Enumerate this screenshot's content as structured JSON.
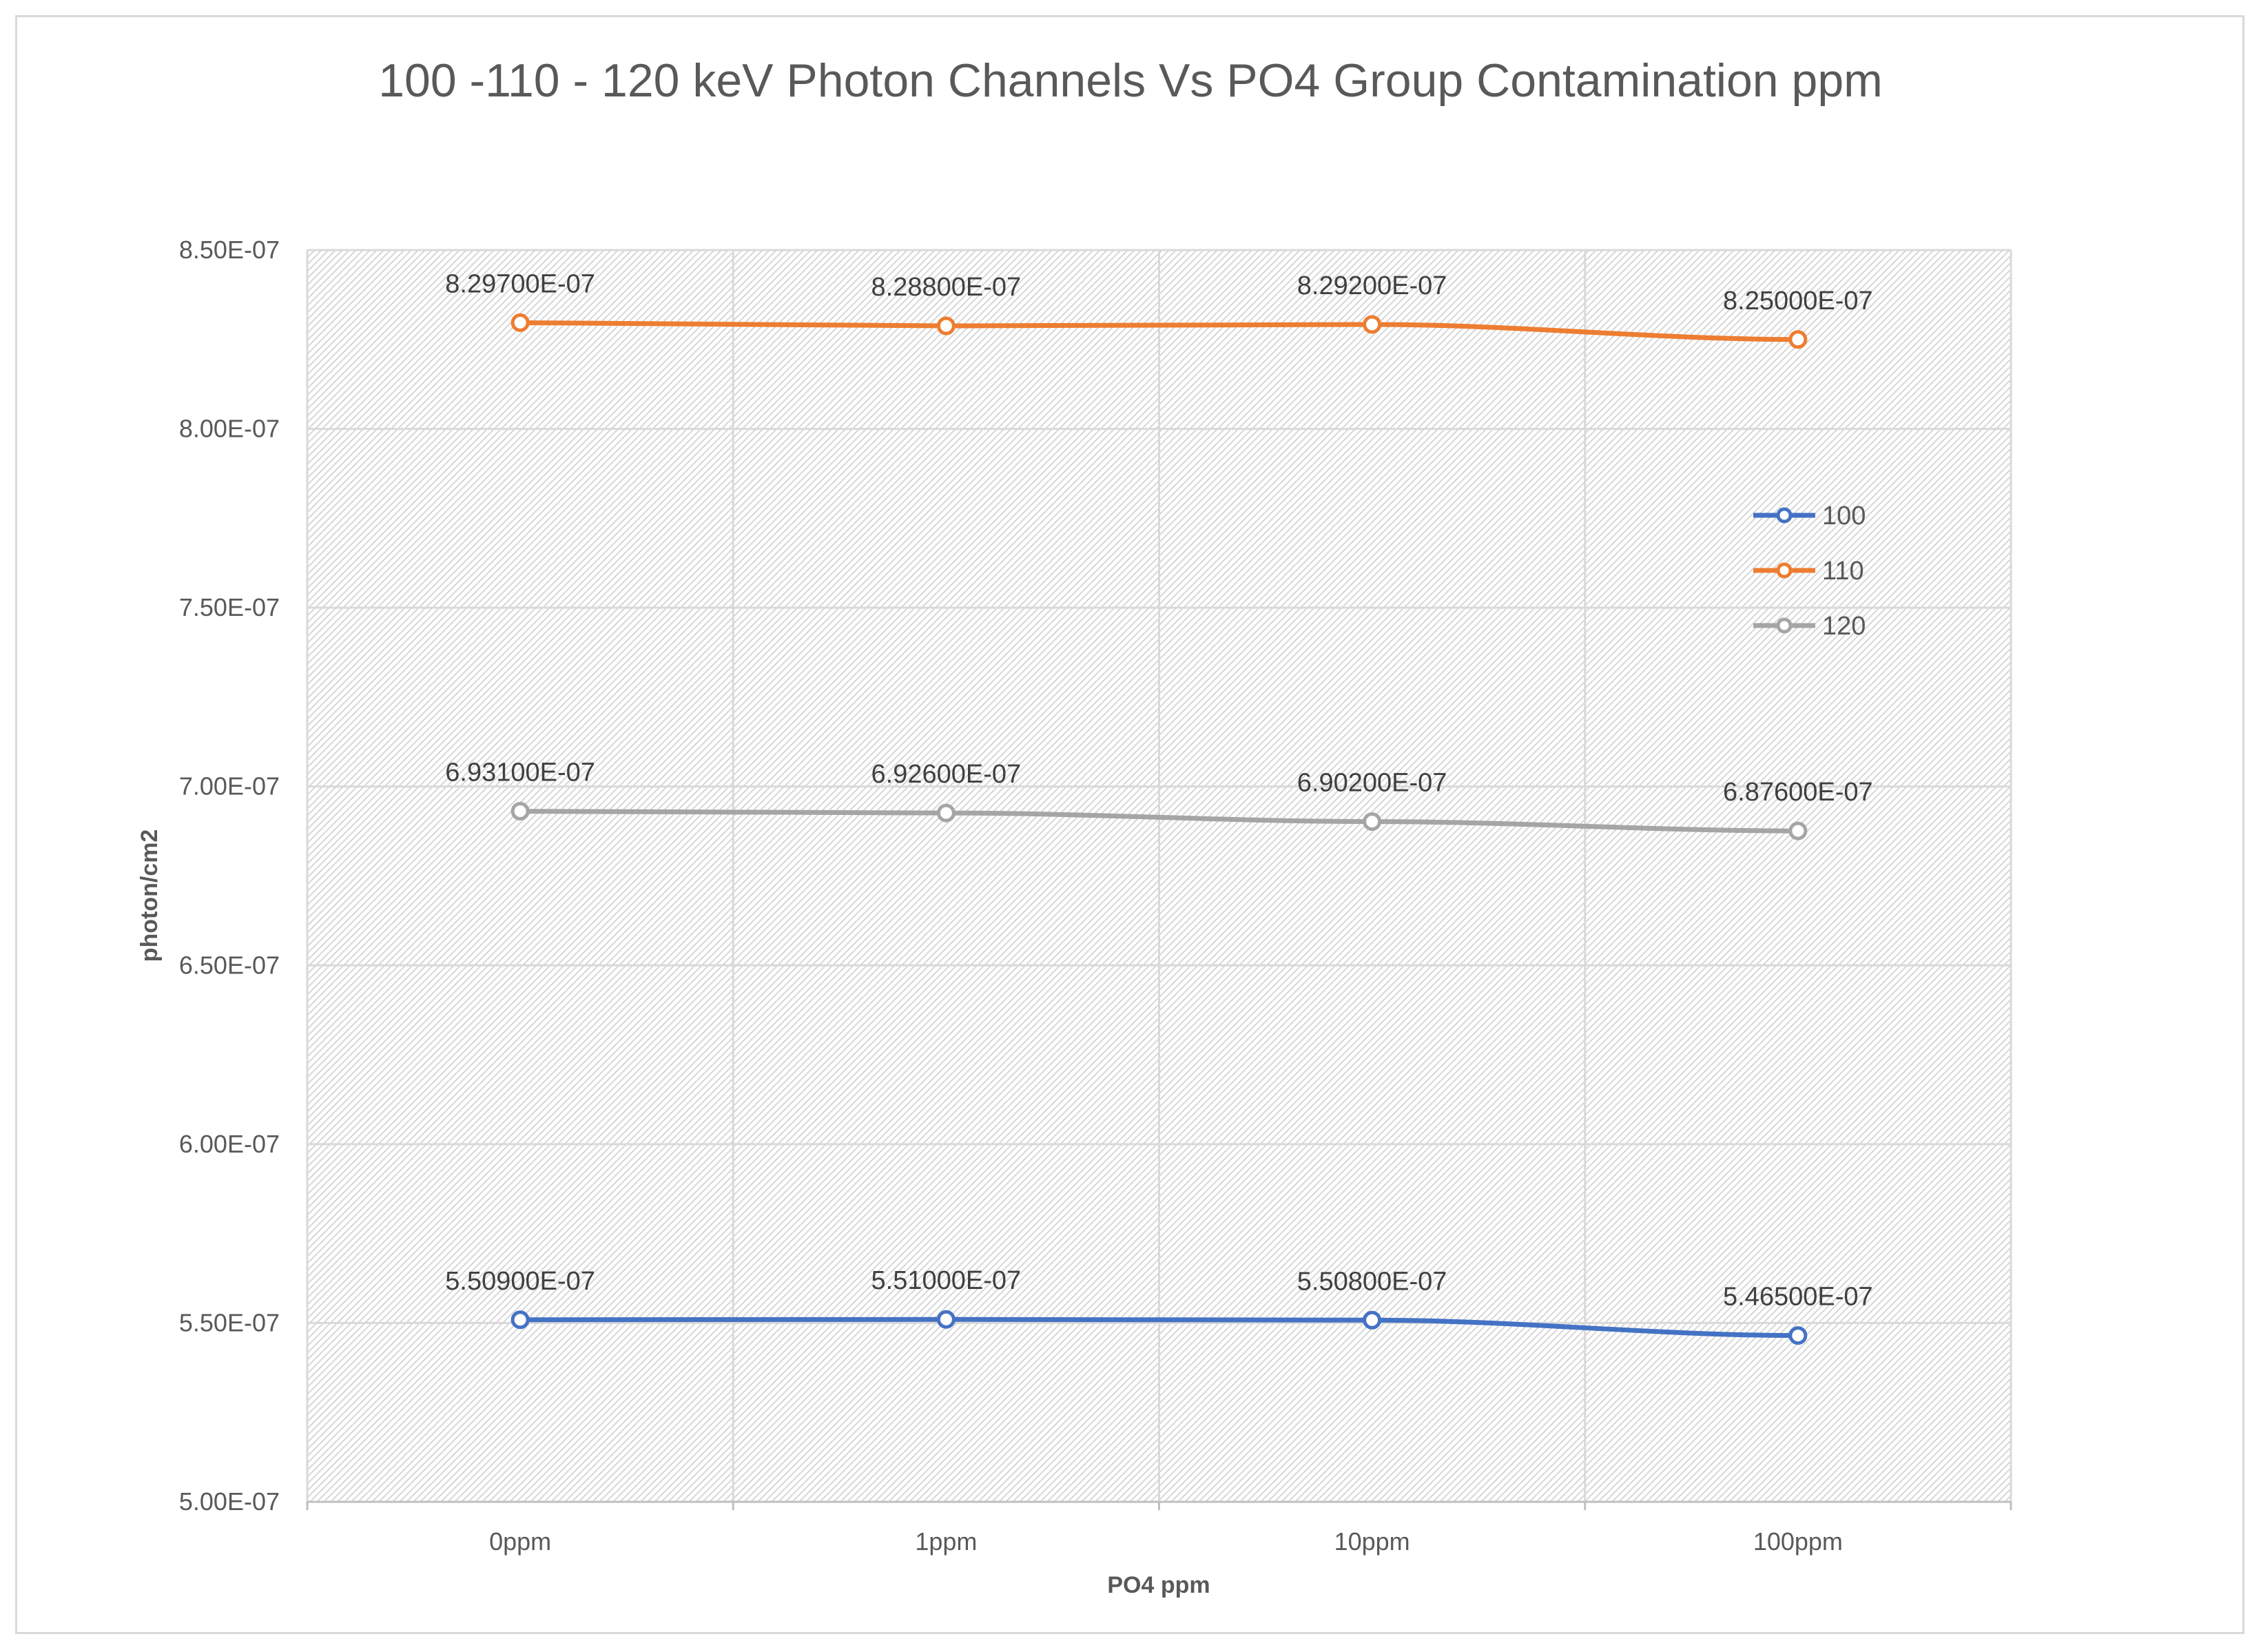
{
  "chart_data": {
    "type": "line",
    "title": "100 -110 - 120 keV Photon Channels Vs PO4 Group Contamination ppm",
    "xlabel": "PO4 ppm",
    "ylabel": "photon/cm2",
    "categories": [
      "0ppm",
      "1ppm",
      "10ppm",
      "100ppm"
    ],
    "ylim": [
      5e-07,
      8.5e-07
    ],
    "yticks": [
      5e-07,
      5.5e-07,
      6e-07,
      6.5e-07,
      7e-07,
      7.5e-07,
      8e-07,
      8.5e-07
    ],
    "ytick_labels": [
      "5.00E-07",
      "5.50E-07",
      "6.00E-07",
      "6.50E-07",
      "7.00E-07",
      "7.50E-07",
      "8.00E-07",
      "8.50E-07"
    ],
    "grid": true,
    "legend_position": "right",
    "series": [
      {
        "name": "100",
        "color": "#4472c4",
        "values": [
          5.509e-07,
          5.51e-07,
          5.508e-07,
          5.465e-07
        ],
        "labels": [
          "5.50900E-07",
          "5.51000E-07",
          "5.50800E-07",
          "5.46500E-07"
        ]
      },
      {
        "name": "110",
        "color": "#ed7d31",
        "values": [
          8.297e-07,
          8.288e-07,
          8.292e-07,
          8.25e-07
        ],
        "labels": [
          "8.29700E-07",
          "8.28800E-07",
          "8.29200E-07",
          "8.25000E-07"
        ]
      },
      {
        "name": "120",
        "color": "#a5a5a5",
        "values": [
          6.931e-07,
          6.926e-07,
          6.902e-07,
          6.876e-07
        ],
        "labels": [
          "6.93100E-07",
          "6.92600E-07",
          "6.90200E-07",
          "6.87600E-07"
        ]
      }
    ]
  }
}
